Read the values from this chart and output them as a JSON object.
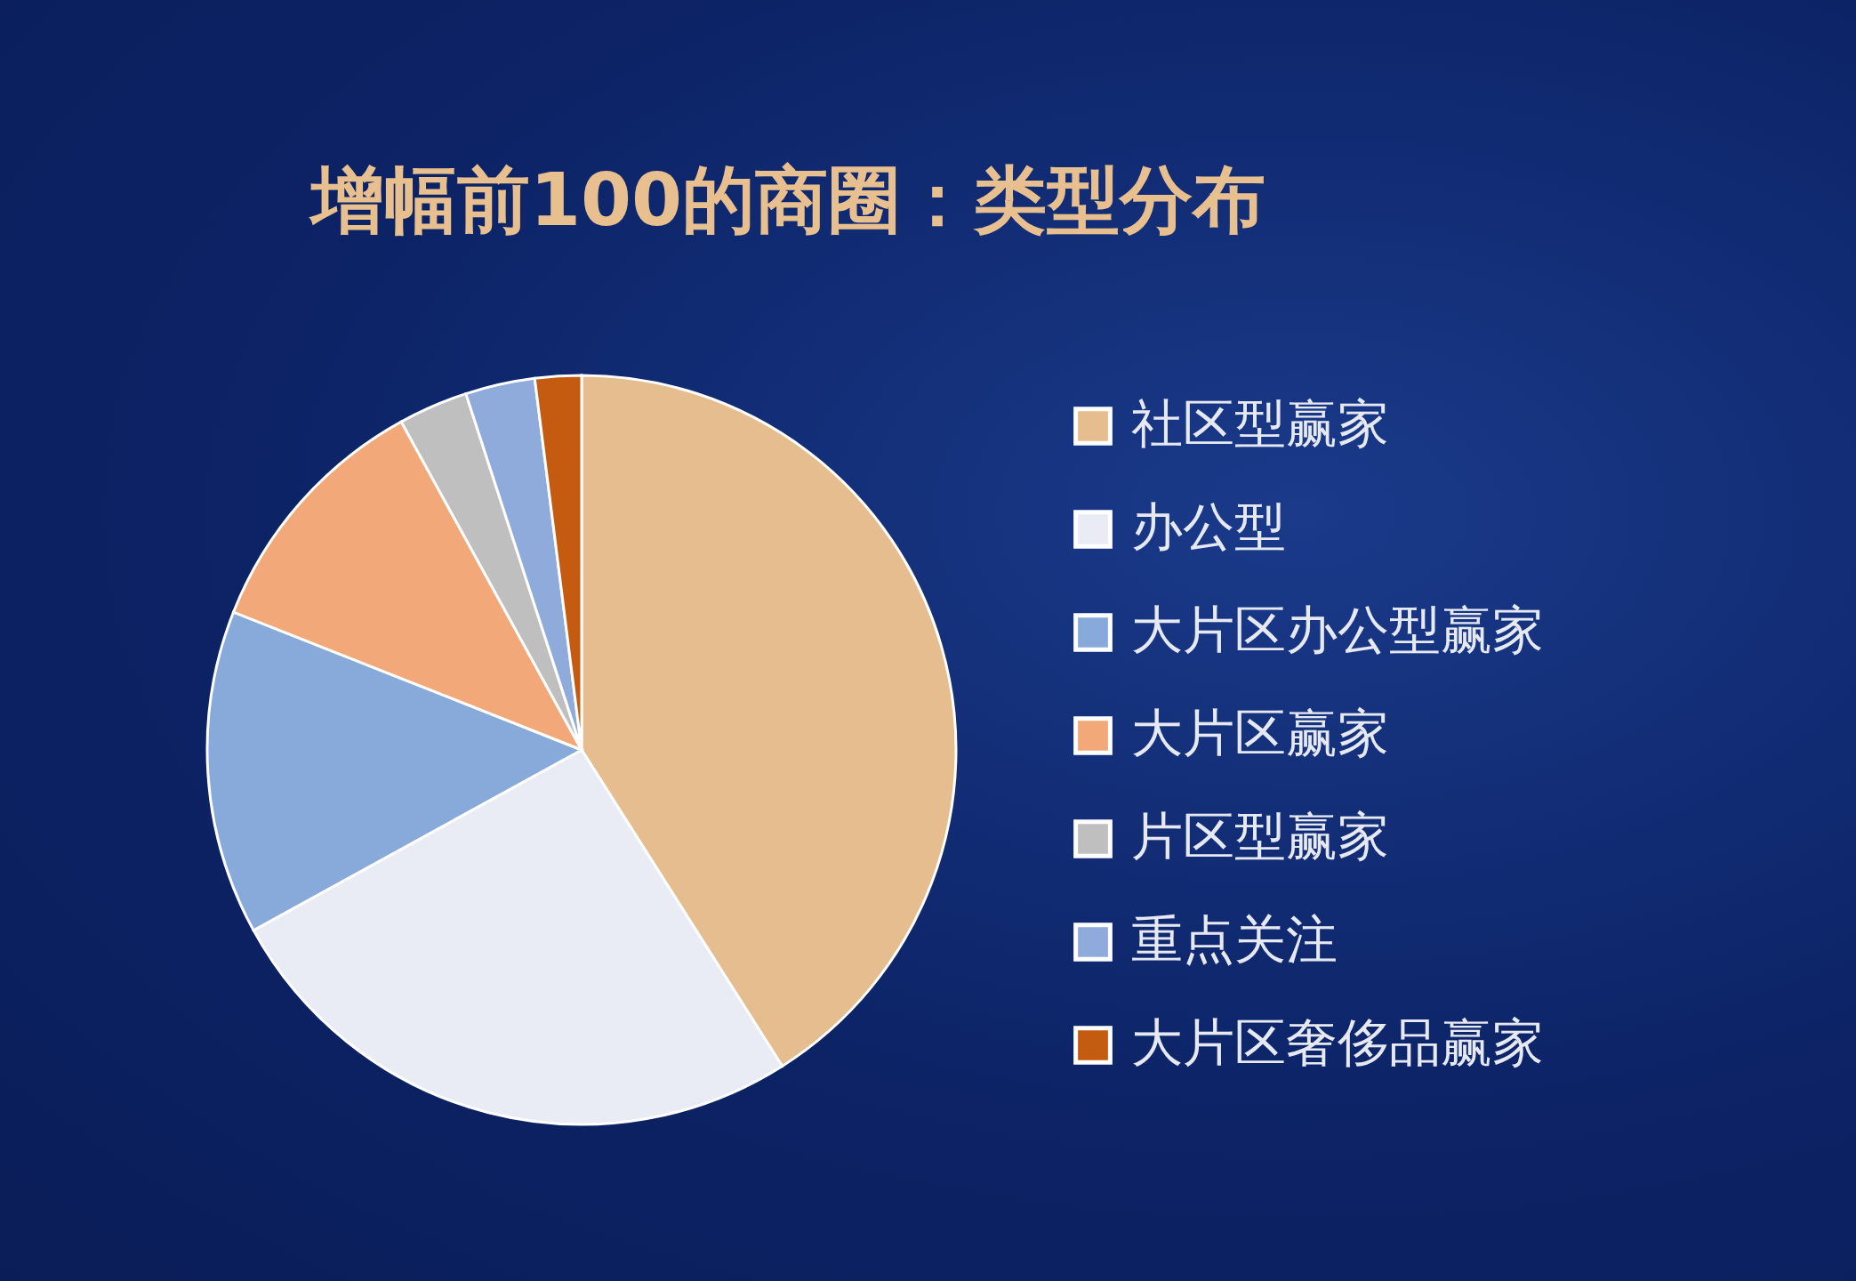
{
  "chart_data": {
    "type": "pie",
    "title": "增幅前100的商圈：类型分布",
    "categories": [
      "社区型赢家",
      "办公型",
      "大片区办公型赢家",
      "大片区赢家",
      "片区型赢家",
      "重点关注",
      "大片区奢侈品赢家"
    ],
    "values": [
      41,
      26,
      14,
      11,
      3,
      3,
      2
    ],
    "colors": [
      "#e6bd8f",
      "#e9ecf5",
      "#87aadb",
      "#f2a878",
      "#bfbfbf",
      "#8eabdc",
      "#c55a11"
    ],
    "legend": "right"
  }
}
